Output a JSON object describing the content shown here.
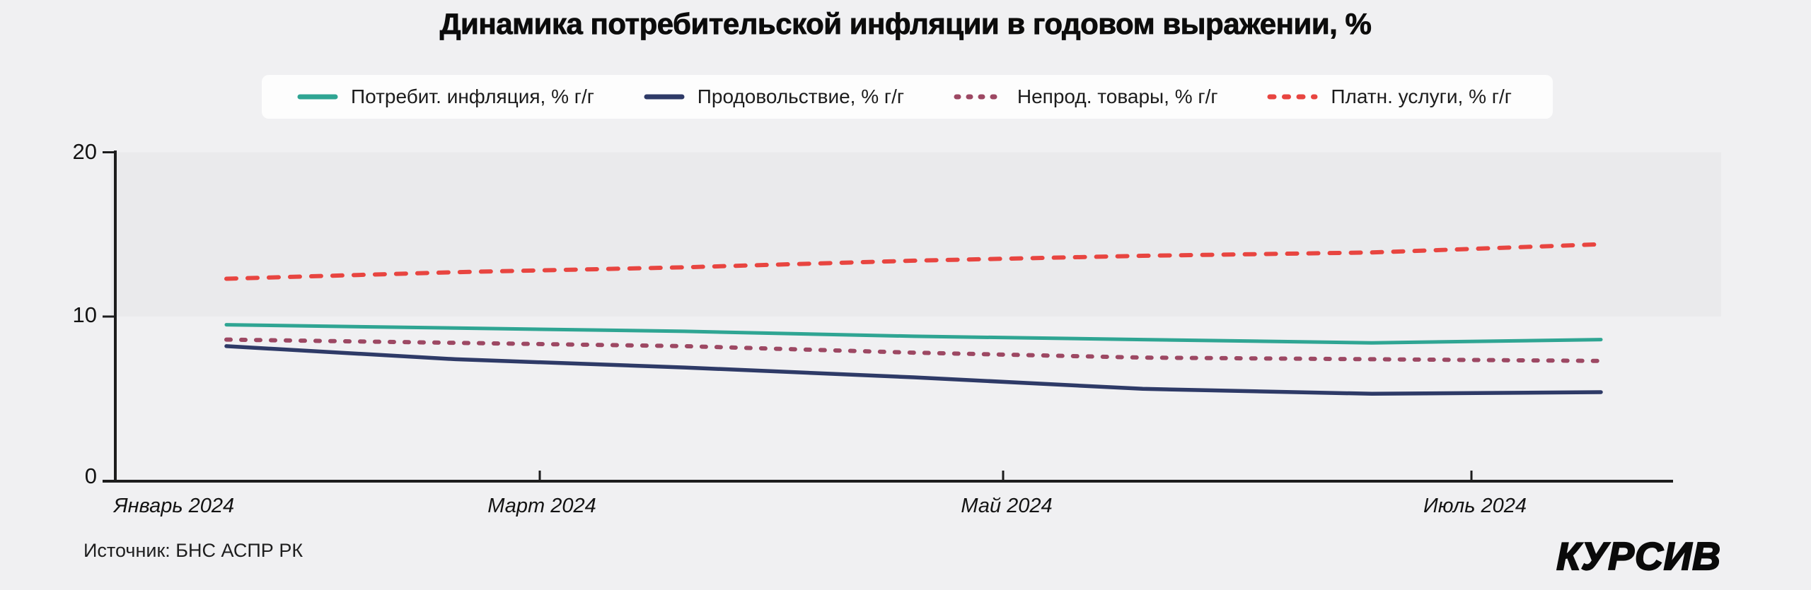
{
  "title": "Динамика потребительской инфляции в годовом выражении, %",
  "legend": {
    "items": [
      {
        "label": "Потребит. инфляция, % г/г",
        "color": "#2fa593",
        "line_style": "solid"
      },
      {
        "label": "Продовольствие, % г/г",
        "color": "#2e3a67",
        "line_style": "solid"
      },
      {
        "label": "Непрод. товары, % г/г",
        "color": "#9d4863",
        "line_style": "dashed"
      },
      {
        "label": "Платн. услуги, % г/г",
        "color": "#e84540",
        "line_style": "dashed"
      }
    ]
  },
  "y_axis": {
    "labels": [
      "20",
      "10",
      "0"
    ]
  },
  "x_axis": {
    "labels": [
      "Январь 2024",
      "Март 2024",
      "Май 2024",
      "Июль 2024"
    ]
  },
  "source": "Источник: БНС АСПР РК",
  "logo": "КУРСИВ",
  "colors": {
    "background": "#f0f0f2",
    "upper_band": "#eaeaec",
    "axis": "#1d1d1d",
    "legend_background": "#fdfdfd"
  },
  "chart_data": {
    "type": "line",
    "title": "Динамика потребительской инфляции в годовом выражении, %",
    "x": [
      "01.2024",
      "02.2024",
      "03.2024",
      "04.2024",
      "05.2024",
      "06.2024",
      "07.2024"
    ],
    "xtick_labels": [
      "Январь 2024",
      "Март 2024",
      "Май 2024",
      "Июль 2024"
    ],
    "series": [
      {
        "name": "Потребит. инфляция, % г/г",
        "color": "#2fa593",
        "line_style": "solid",
        "values": [
          9.5,
          9.3,
          9.1,
          8.8,
          8.6,
          8.4,
          8.6
        ]
      },
      {
        "name": "Продовольствие, % г/г",
        "color": "#2e3a67",
        "line_style": "solid",
        "values": [
          8.2,
          7.4,
          6.9,
          6.3,
          5.6,
          5.3,
          5.4
        ]
      },
      {
        "name": "Непрод. товары, % г/г",
        "color": "#9d4863",
        "line_style": "dashed",
        "values": [
          8.6,
          8.4,
          8.2,
          7.8,
          7.5,
          7.4,
          7.3
        ]
      },
      {
        "name": "Платн. услуги, % г/г",
        "color": "#e84540",
        "line_style": "dashed",
        "values": [
          12.3,
          12.7,
          13.0,
          13.4,
          13.7,
          13.9,
          14.4
        ]
      }
    ],
    "ylabel": "",
    "xlabel": "",
    "ylim": [
      0,
      20
    ],
    "yticks": [
      0,
      10,
      20
    ],
    "grid": false,
    "legend_position": "top",
    "shaded_band": {
      "from": 10,
      "to": 20
    }
  }
}
